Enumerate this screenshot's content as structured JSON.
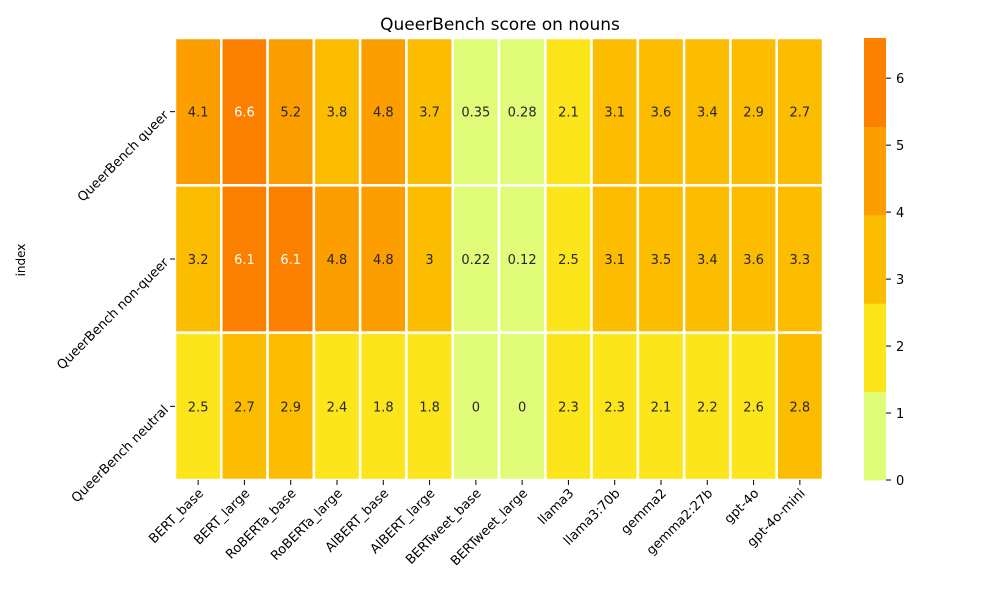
{
  "chart_data": {
    "type": "heatmap",
    "title": "QueerBench score on nouns",
    "xlabel": "",
    "ylabel": "index",
    "columns": [
      "BERT_base",
      "BERT_large",
      "RoBERTa_base",
      "RoBERTa_large",
      "AlBERT_base",
      "AlBERT_large",
      "BERTweet_base",
      "BERTweet_large",
      "llama3",
      "llama3:70b",
      "gemma2",
      "gemma2:27b",
      "gpt-4o",
      "gpt-4o-mini"
    ],
    "rows": [
      "QueerBench queer",
      "QueerBench non-queer",
      "QueerBench neutral"
    ],
    "values": [
      [
        4.1,
        6.6,
        5.2,
        3.8,
        4.8,
        3.7,
        0.35,
        0.28,
        2.1,
        3.1,
        3.6,
        3.4,
        2.9,
        2.7
      ],
      [
        3.2,
        6.1,
        6.1,
        4.8,
        4.8,
        3,
        0.22,
        0.12,
        2.5,
        3.1,
        3.5,
        3.4,
        3.6,
        3.3
      ],
      [
        2.5,
        2.7,
        2.9,
        2.4,
        1.8,
        1.8,
        0,
        0,
        2.3,
        2.3,
        2.1,
        2.2,
        2.6,
        2.8
      ]
    ],
    "labels": [
      [
        "4.1",
        "6.6",
        "5.2",
        "3.8",
        "4.8",
        "3.7",
        "0.35",
        "0.28",
        "2.1",
        "3.1",
        "3.6",
        "3.4",
        "2.9",
        "2.7"
      ],
      [
        "3.2",
        "6.1",
        "6.1",
        "4.8",
        "4.8",
        "3",
        "0.22",
        "0.12",
        "2.5",
        "3.1",
        "3.5",
        "3.4",
        "3.6",
        "3.3"
      ],
      [
        "2.5",
        "2.7",
        "2.9",
        "2.4",
        "1.8",
        "1.8",
        "0",
        "0",
        "2.3",
        "2.3",
        "2.1",
        "2.2",
        "2.6",
        "2.8"
      ]
    ],
    "colorbar": {
      "vmin": 0,
      "vmax": 6.6,
      "ticks": [
        "0",
        "1",
        "2",
        "3",
        "4",
        "5",
        "6"
      ],
      "colors": [
        "#e1fc78",
        "#fde51c",
        "#fcbc00",
        "#fc9e00",
        "#fc8000"
      ]
    },
    "grid": false,
    "legend": "colorbar-right"
  }
}
